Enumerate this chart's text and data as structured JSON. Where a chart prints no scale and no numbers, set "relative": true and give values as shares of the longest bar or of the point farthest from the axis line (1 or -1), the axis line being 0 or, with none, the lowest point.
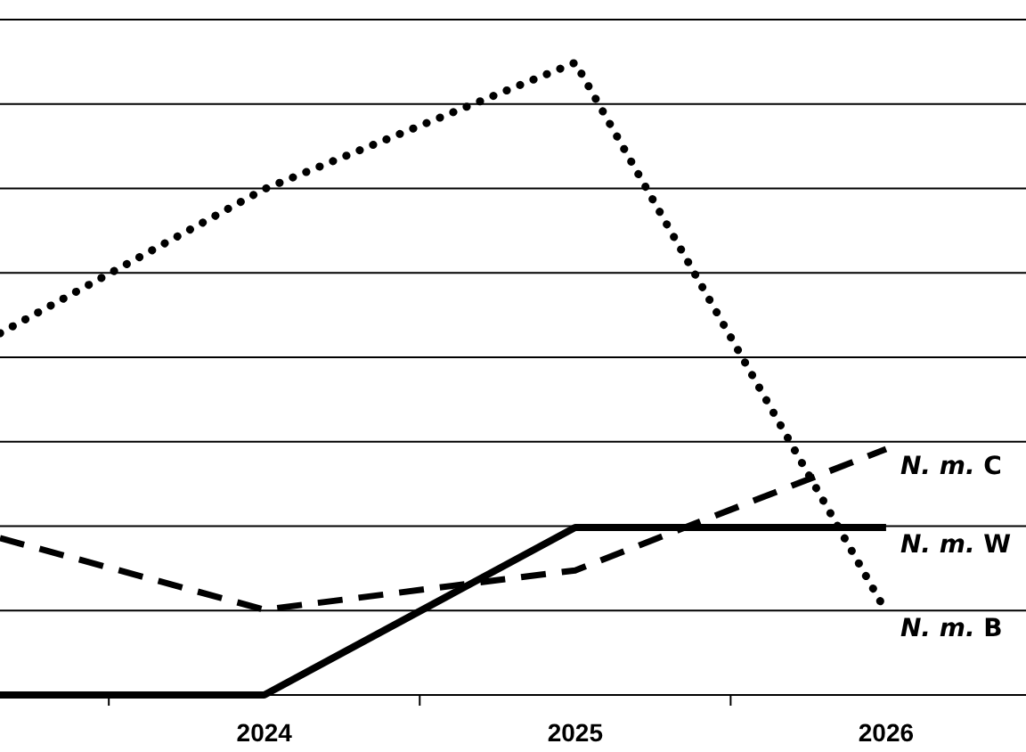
{
  "chart_data": {
    "type": "line",
    "relative": true,
    "grid": "y",
    "x": [
      2023.15,
      2024,
      2025,
      2026
    ],
    "xlim": [
      2023.15,
      2026.45
    ],
    "xticks": [
      {
        "value": 2023.5,
        "label": null
      },
      2024,
      {
        "value": 2024.5,
        "label": null
      },
      2025,
      {
        "value": 2025.5,
        "label": null
      },
      2026
    ],
    "series": [
      {
        "name": "N. m. B",
        "color": "#000000",
        "line_style": "dotted",
        "values": [
          0.572,
          0.8,
          1,
          0.132
        ]
      },
      {
        "name": "N. m. C",
        "color": "#000000",
        "line_style": "dashed",
        "values": [
          0.248,
          0.135,
          0.197,
          0.389
        ]
      },
      {
        "name": "N. m. W",
        "color": "#000000",
        "line_style": "solid",
        "values": [
          0,
          0,
          0.265,
          0.265
        ]
      }
    ]
  }
}
